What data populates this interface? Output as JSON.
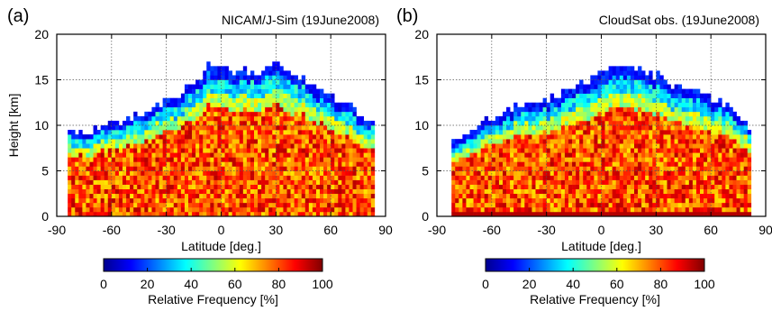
{
  "figure": {
    "panels": [
      {
        "tag": "(a)",
        "title": "NICAM/J-Sim (19June2008)"
      },
      {
        "tag": "(b)",
        "title": "CloudSat obs. (19June2008)"
      }
    ],
    "colorbar": {
      "label": "Relative Frequency [%]",
      "ticks": [
        "0",
        "20",
        "40",
        "60",
        "80",
        "100"
      ],
      "colors": [
        "#00008f",
        "#0000ff",
        "#0080ff",
        "#00ffff",
        "#80ff80",
        "#ffff00",
        "#ff8000",
        "#ff0000",
        "#800000"
      ]
    }
  },
  "chart_data": [
    {
      "type": "heatmap",
      "title": "NICAM/J-Sim (19June2008)",
      "panel": "(a)",
      "xlabel": "Latitude [deg.]",
      "ylabel": "Height [km]",
      "xlim": [
        -90,
        90
      ],
      "ylim": [
        0,
        20
      ],
      "xticks": [
        "-90",
        "-60",
        "-30",
        "0",
        "30",
        "60",
        "90"
      ],
      "yticks": [
        "0",
        "5",
        "10",
        "15",
        "20"
      ],
      "grid": true,
      "value_range": [
        0,
        100
      ],
      "value_label": "Relative Frequency [%]",
      "data_lat_range": [
        -84,
        84
      ],
      "cloud_top_profile": {
        "lat": [
          -84,
          -75,
          -66,
          -57,
          -48,
          -39,
          -30,
          -21,
          -12,
          -6,
          0,
          6,
          12,
          21,
          30,
          39,
          48,
          57,
          66,
          75,
          84
        ],
        "top_km": [
          9.0,
          9.2,
          9.5,
          10.0,
          10.5,
          11.5,
          12.5,
          13.5,
          15.0,
          16.8,
          16.0,
          15.5,
          15.8,
          15.5,
          16.8,
          15.5,
          14.5,
          13.5,
          12.5,
          11.0,
          10.0
        ]
      }
    },
    {
      "type": "heatmap",
      "title": "CloudSat obs. (19June2008)",
      "panel": "(b)",
      "xlabel": "Latitude [deg.]",
      "ylabel": "",
      "xlim": [
        -90,
        90
      ],
      "ylim": [
        0,
        20
      ],
      "xticks": [
        "-90",
        "-60",
        "-30",
        "0",
        "30",
        "60",
        "90"
      ],
      "yticks": [
        "0",
        "5",
        "10",
        "15",
        "20"
      ],
      "grid": true,
      "value_range": [
        0,
        100
      ],
      "value_label": "Relative Frequency [%]",
      "data_lat_range": [
        -82,
        82
      ],
      "cloud_top_profile": {
        "lat": [
          -82,
          -72,
          -62,
          -52,
          -42,
          -32,
          -22,
          -12,
          -3,
          6,
          15,
          24,
          33,
          42,
          51,
          60,
          70,
          82
        ],
        "top_km": [
          8.0,
          8.5,
          10.5,
          11.5,
          12.0,
          12.5,
          13.0,
          14.0,
          15.0,
          16.5,
          16.5,
          15.5,
          15.0,
          14.0,
          13.5,
          13.0,
          12.0,
          9.5
        ]
      }
    }
  ]
}
